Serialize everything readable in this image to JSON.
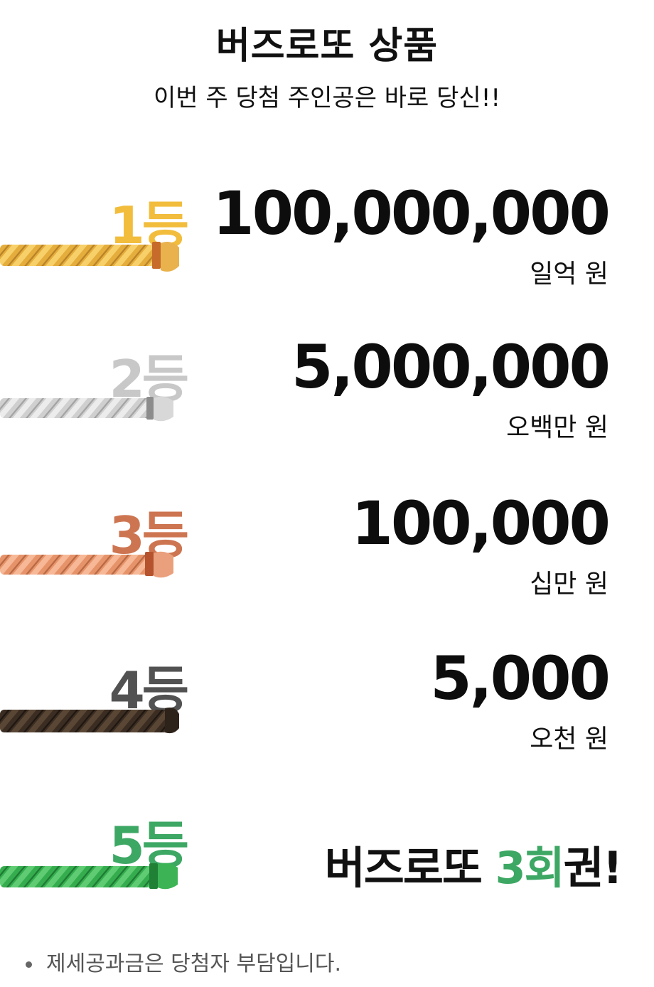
{
  "header": {
    "title": "버즈로또 상품",
    "subtitle": "이번 주 당첨 주인공은 바로 당신!!"
  },
  "prizes": [
    {
      "rank": "1등",
      "amount": "100,000,000",
      "amount_kr": "일억 원",
      "color": "#f2bd3c"
    },
    {
      "rank": "2등",
      "amount": "5,000,000",
      "amount_kr": "오백만 원",
      "color": "#c8c8c8"
    },
    {
      "rank": "3등",
      "amount": "100,000",
      "amount_kr": "십만 원",
      "color": "#cd7551"
    },
    {
      "rank": "4등",
      "amount": "5,000",
      "amount_kr": "오천 원",
      "color": "#525252"
    },
    {
      "rank": "5등",
      "bonus_prefix": "버즈로또 ",
      "bonus_highlight": "3회",
      "bonus_suffix": "권!",
      "color": "#3da764"
    }
  ],
  "rope_colors": {
    "gold": "#e4ad3c",
    "silver": "#cfcfcf",
    "bronze": "#e6936a",
    "dark": "#3b2d22",
    "green": "#35ad4e"
  },
  "footer": {
    "note": "제세공과금은 당첨자 부담입니다."
  }
}
